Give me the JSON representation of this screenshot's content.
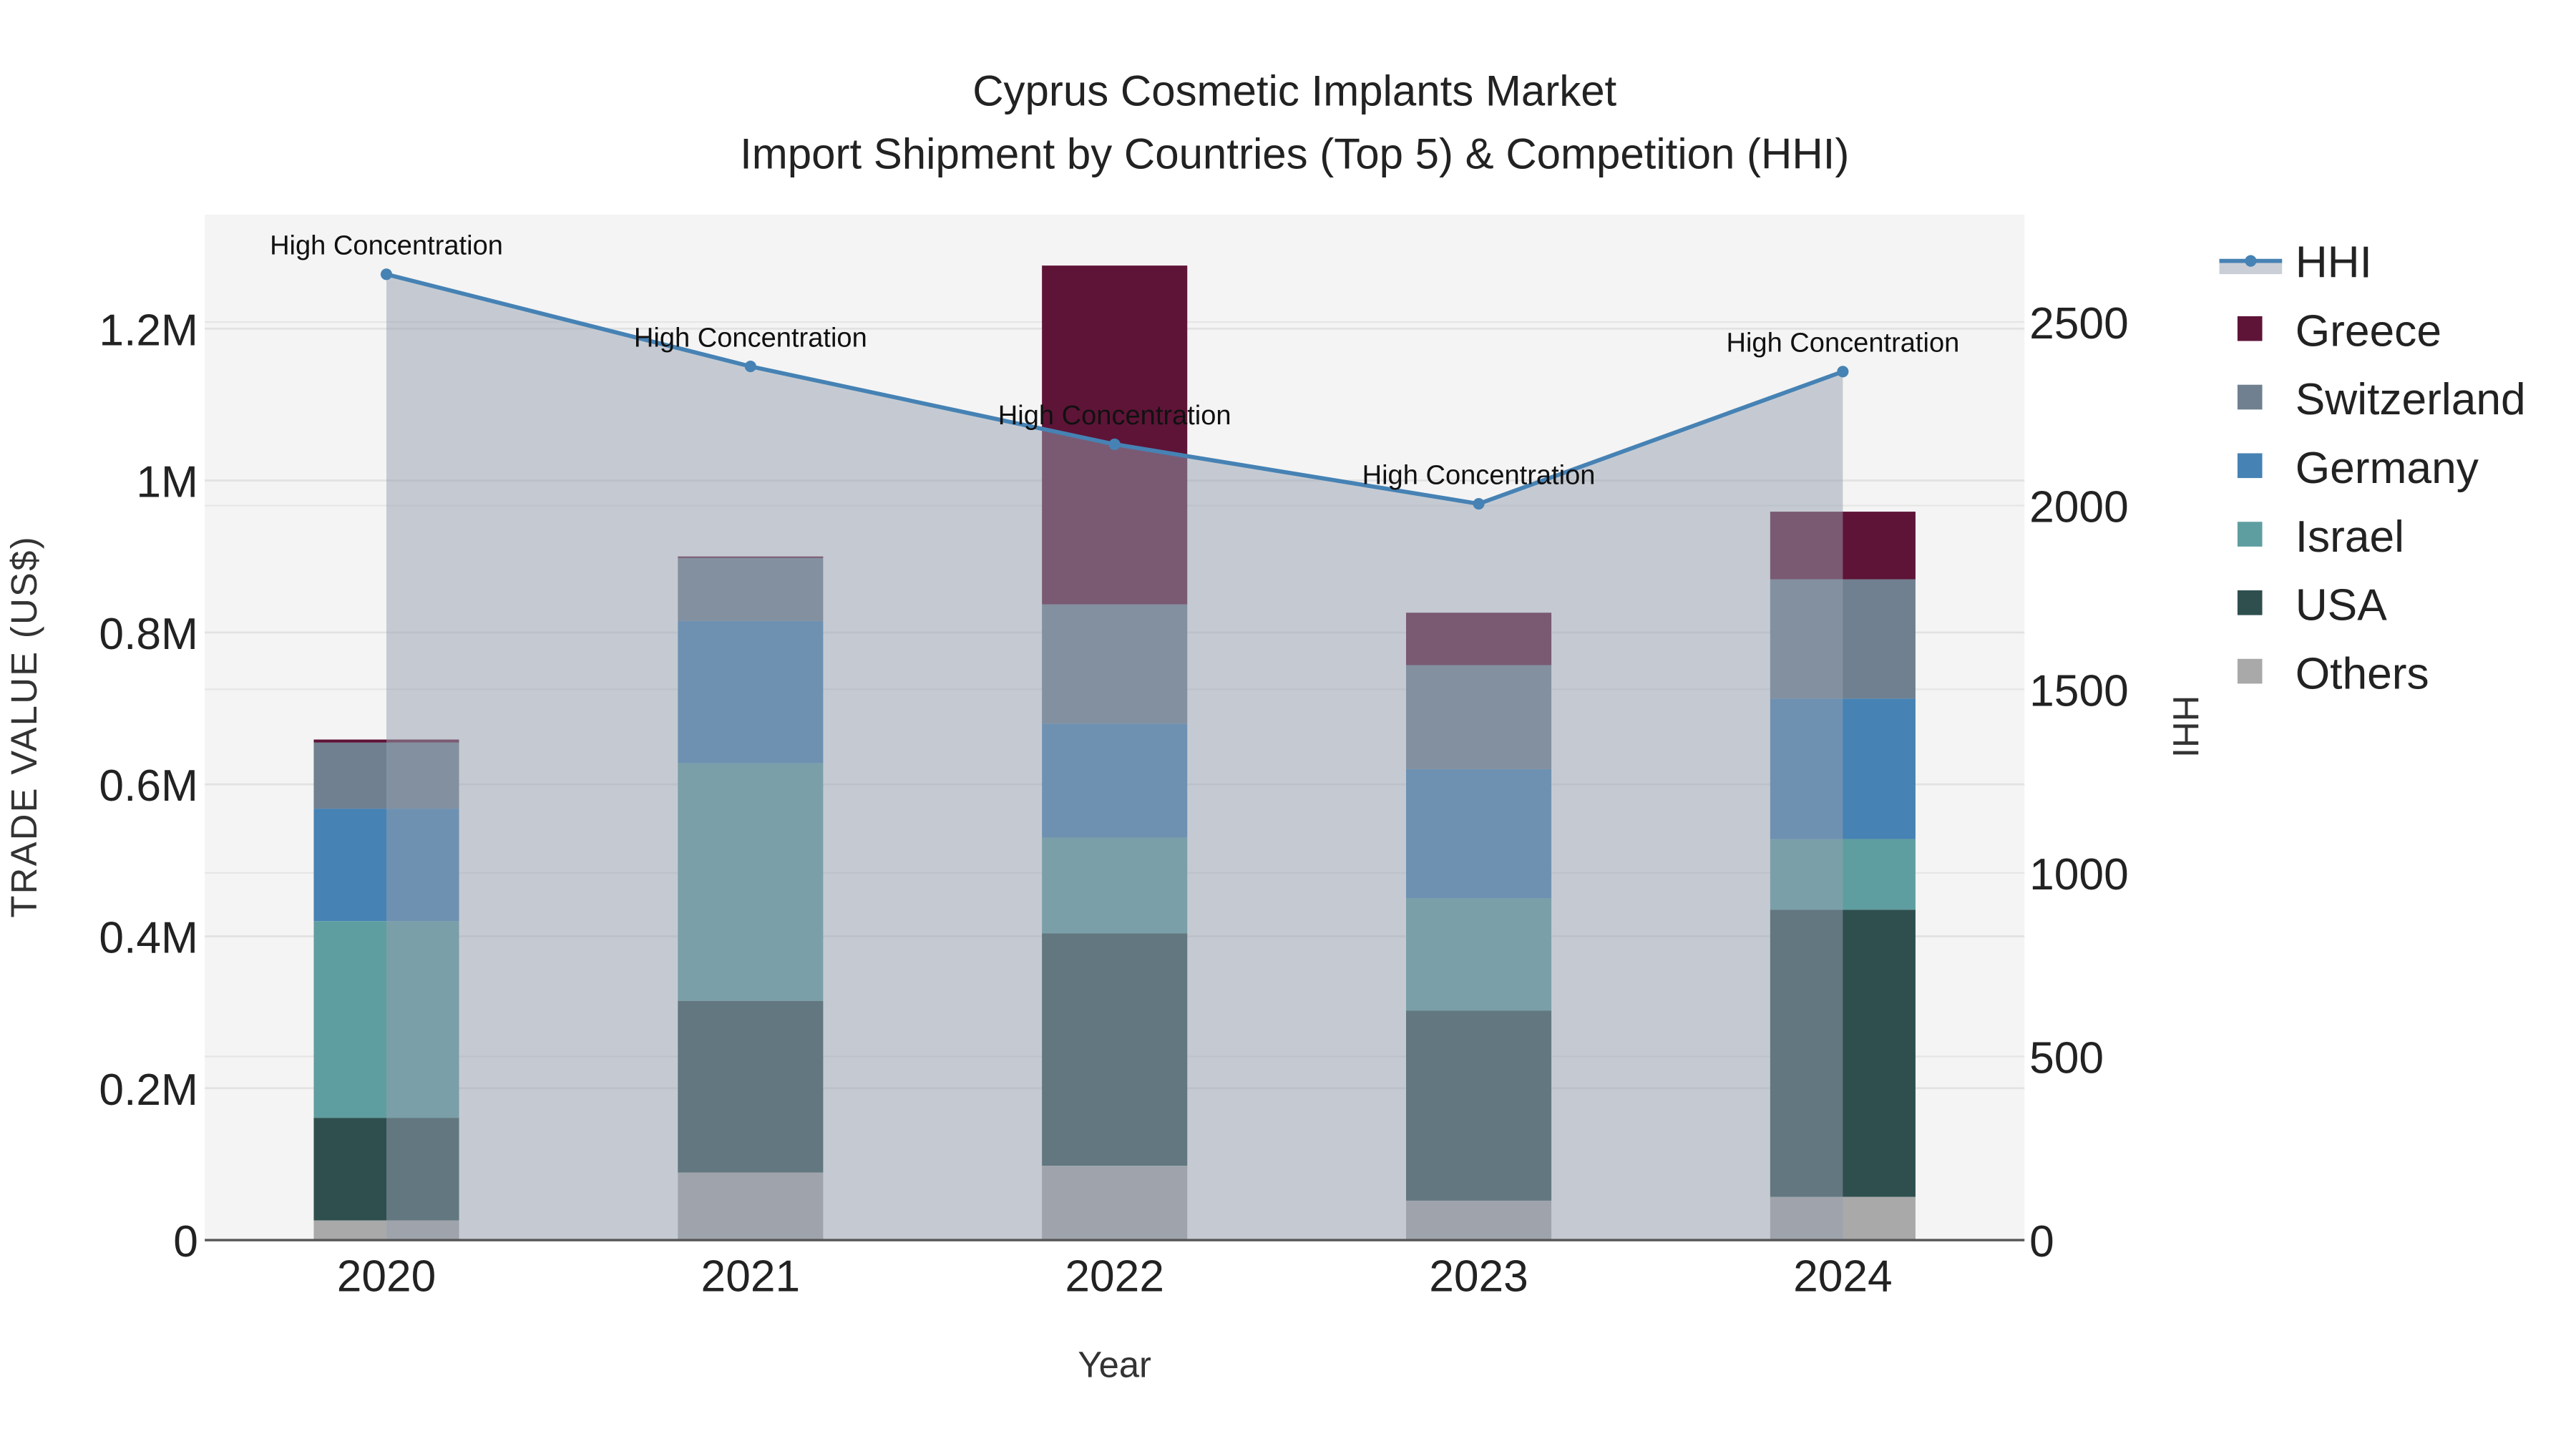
{
  "chart_data": {
    "type": "bar",
    "title": "Cyprus Cosmetic Implants Market",
    "subtitle": "Import Shipment by Countries (Top 5) & Competition (HHI)",
    "xlabel": "Year",
    "ylabel": "TRADE VALUE (US$)",
    "y2label": "HHI",
    "categories": [
      "2020",
      "2021",
      "2022",
      "2023",
      "2024"
    ],
    "ylim": [
      0,
      1350000
    ],
    "y2lim": [
      0,
      2800
    ],
    "yticks": [
      {
        "v": 0,
        "label": "0"
      },
      {
        "v": 200000,
        "label": "0.2M"
      },
      {
        "v": 400000,
        "label": "0.4M"
      },
      {
        "v": 600000,
        "label": "0.6M"
      },
      {
        "v": 800000,
        "label": "0.8M"
      },
      {
        "v": 1000000,
        "label": "1M"
      },
      {
        "v": 1200000,
        "label": "1.2M"
      }
    ],
    "y2ticks": [
      {
        "v": 0,
        "label": "0"
      },
      {
        "v": 500,
        "label": "500"
      },
      {
        "v": 1000,
        "label": "1000"
      },
      {
        "v": 1500,
        "label": "1500"
      },
      {
        "v": 2000,
        "label": "2000"
      },
      {
        "v": 2500,
        "label": "2500"
      }
    ],
    "series": [
      {
        "name": "Others",
        "color": "#a9a9a9",
        "values": [
          26000,
          89000,
          98000,
          52000,
          57000
        ]
      },
      {
        "name": "USA",
        "color": "#2f4f4f",
        "values": [
          135000,
          226000,
          306000,
          250000,
          378000
        ]
      },
      {
        "name": "Israel",
        "color": "#5f9ea0",
        "values": [
          259000,
          313000,
          126000,
          148000,
          93000
        ]
      },
      {
        "name": "Germany",
        "color": "#4682b4",
        "values": [
          148000,
          187000,
          150000,
          170000,
          185000
        ]
      },
      {
        "name": "Switzerland",
        "color": "#708090",
        "values": [
          87000,
          83000,
          157000,
          137000,
          157000
        ]
      },
      {
        "name": "Greece",
        "color": "#5e1437",
        "values": [
          4000,
          2000,
          446000,
          69000,
          89000
        ]
      }
    ],
    "line": {
      "name": "HHI",
      "color": "#4682b4",
      "axis": "right",
      "values": [
        2630,
        2379,
        2167,
        2005,
        2365
      ]
    },
    "annotations": [
      "High Concentration",
      "High Concentration",
      "High Concentration",
      "High Concentration",
      "High Concentration"
    ],
    "legend_order": [
      "HHI",
      "Greece",
      "Switzerland",
      "Germany",
      "Israel",
      "USA",
      "Others"
    ],
    "legend_position": "right",
    "grid": true
  }
}
